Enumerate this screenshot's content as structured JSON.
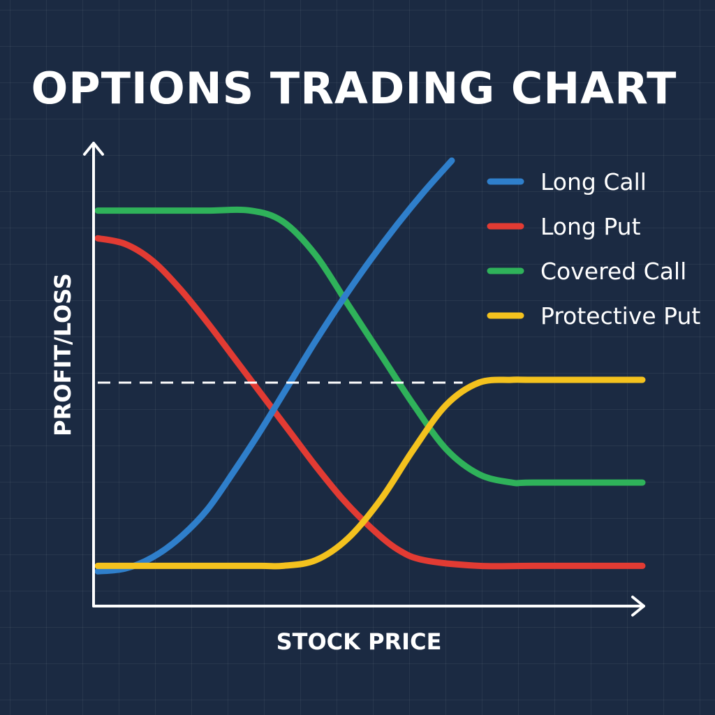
{
  "chart_data": {
    "type": "line",
    "title": "OPTIONS TRADING CHART",
    "xlabel": "STOCK PRICE",
    "ylabel": "PROFIT/LOSS",
    "xlim": [
      0,
      10
    ],
    "ylim": [
      -4,
      4
    ],
    "grid": true,
    "legend_position": "top-right",
    "reference_line": {
      "y": 0,
      "style": "dashed",
      "x_end": 6.7
    },
    "series": [
      {
        "name": "Long Call",
        "color": "#2f7fcb",
        "x": [
          0,
          0.5,
          1.0,
          1.5,
          2.0,
          2.5,
          3.0,
          3.5,
          4.0,
          4.5,
          5.0,
          5.5,
          6.0,
          6.5
        ],
        "y": [
          -3.4,
          -3.35,
          -3.15,
          -2.8,
          -2.3,
          -1.6,
          -0.85,
          -0.05,
          0.75,
          1.5,
          2.2,
          2.85,
          3.45,
          4.0
        ]
      },
      {
        "name": "Long Put",
        "color": "#e23b33",
        "x": [
          0,
          0.5,
          1.0,
          1.5,
          2.0,
          2.5,
          3.0,
          3.5,
          4.0,
          4.5,
          5.0,
          5.5,
          6.0,
          7.0,
          8.0,
          10.0
        ],
        "y": [
          2.6,
          2.5,
          2.2,
          1.7,
          1.1,
          0.45,
          -0.2,
          -0.85,
          -1.5,
          -2.1,
          -2.6,
          -3.0,
          -3.2,
          -3.3,
          -3.3,
          -3.3
        ]
      },
      {
        "name": "Covered Call",
        "color": "#2fb25a",
        "x": [
          0,
          1.0,
          2.0,
          2.8,
          3.4,
          4.0,
          4.6,
          5.2,
          5.8,
          6.4,
          7.0,
          7.6,
          8.0,
          10.0
        ],
        "y": [
          3.1,
          3.1,
          3.1,
          3.1,
          2.9,
          2.3,
          1.4,
          0.5,
          -0.4,
          -1.2,
          -1.65,
          -1.8,
          -1.8,
          -1.8
        ]
      },
      {
        "name": "Protective Put",
        "color": "#f4c21e",
        "x": [
          0,
          1.0,
          2.0,
          3.0,
          3.4,
          4.0,
          4.6,
          5.2,
          5.8,
          6.4,
          7.0,
          7.6,
          8.0,
          10.0
        ],
        "y": [
          -3.3,
          -3.3,
          -3.3,
          -3.3,
          -3.3,
          -3.2,
          -2.8,
          -2.1,
          -1.2,
          -0.4,
          0.0,
          0.05,
          0.05,
          0.05
        ]
      }
    ]
  }
}
